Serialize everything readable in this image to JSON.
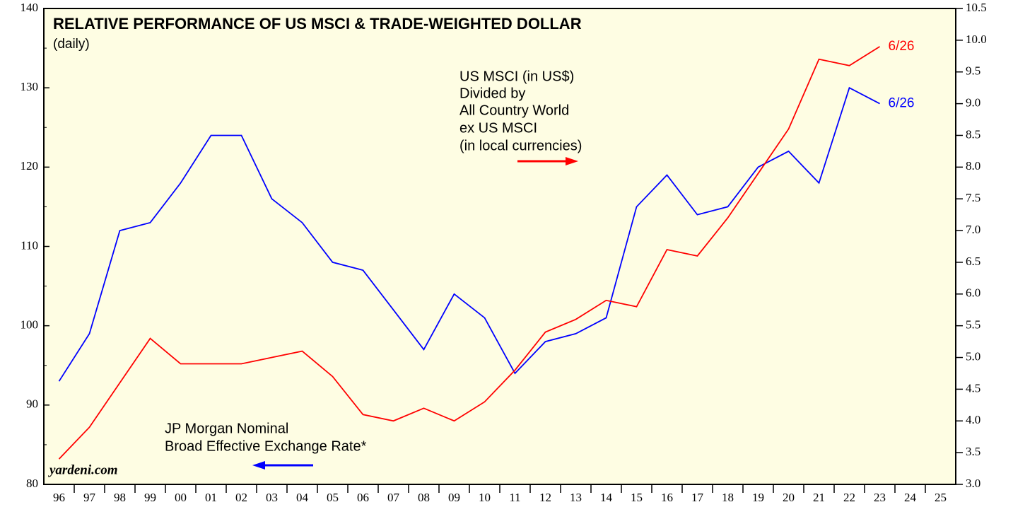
{
  "chart_data": {
    "type": "line",
    "title": "RELATIVE PERFORMANCE OF US MSCI & TRADE-WEIGHTED DOLLAR",
    "subtitle": "(daily)",
    "source": "yardeni.com",
    "categories": [
      "96",
      "97",
      "98",
      "99",
      "00",
      "01",
      "02",
      "03",
      "04",
      "05",
      "06",
      "07",
      "08",
      "09",
      "10",
      "11",
      "12",
      "13",
      "14",
      "15",
      "16",
      "17",
      "18",
      "19",
      "20",
      "21",
      "22",
      "23",
      "24",
      "25"
    ],
    "ylim": [
      80,
      140
    ],
    "yticks": [
      80,
      90,
      100,
      110,
      120,
      130,
      140
    ],
    "y2lim": [
      3,
      10.5
    ],
    "y2ticks": [
      {
        "value": 3,
        "label": "3.0"
      },
      3.5,
      {
        "value": 4,
        "label": "4.0"
      },
      4.5,
      {
        "value": 5,
        "label": "5.0"
      },
      5.5,
      {
        "value": 6,
        "label": "6.0"
      },
      6.5,
      {
        "value": 7,
        "label": "7.0"
      },
      7.5,
      {
        "value": 8,
        "label": "8.0"
      },
      8.5,
      {
        "value": 9,
        "label": "9.0"
      },
      9.5,
      {
        "value": 10,
        "label": "10.0"
      },
      10.5
    ],
    "series": [
      {
        "color": "#0000ff",
        "axis": "y",
        "end_label": "6/26",
        "values": [
          93,
          99,
          112,
          113,
          118,
          124,
          124,
          116,
          113,
          108,
          107,
          102,
          97,
          104,
          101,
          94,
          98,
          99,
          101,
          115,
          119,
          114,
          115,
          120,
          122,
          118,
          130,
          128,
          null,
          null
        ]
      },
      {
        "color": "#ff0000",
        "axis": "y2",
        "end_label": "6/26",
        "values": [
          3.4,
          3.9,
          4.6,
          5.3,
          4.9,
          4.9,
          4.9,
          5.0,
          5.1,
          4.7,
          4.1,
          4.0,
          4.2,
          4.0,
          4.3,
          4.8,
          5.4,
          5.6,
          5.9,
          5.8,
          6.7,
          6.6,
          7.2,
          7.9,
          8.6,
          9.7,
          9.6,
          9.9,
          null,
          null
        ]
      }
    ],
    "annotations": [
      {
        "lines": [
          "US MSCI (in US$)",
          "Divided by",
          "All Country World",
          "ex US MSCI",
          "(in local currencies)"
        ]
      },
      {
        "lines": [
          "JP Morgan Nominal",
          "Broad Effective Exchange Rate*"
        ]
      }
    ]
  }
}
